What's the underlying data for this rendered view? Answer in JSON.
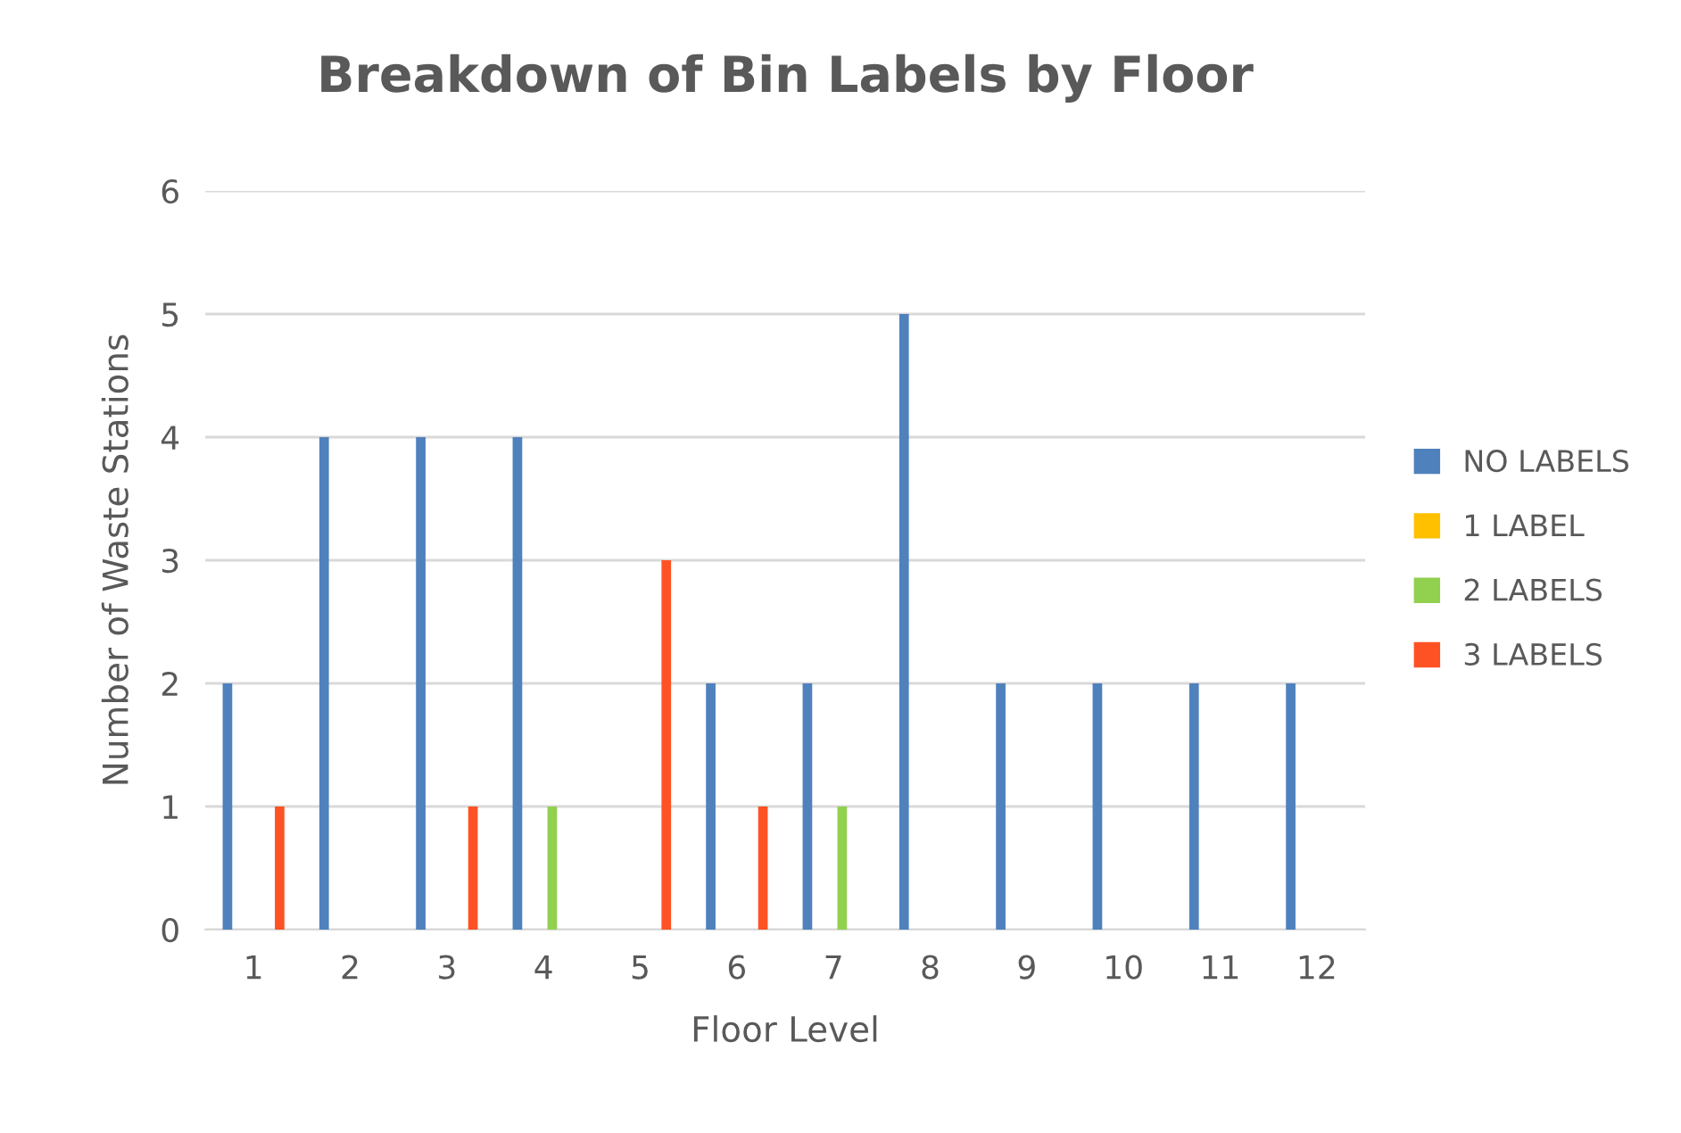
{
  "chart_data": {
    "type": "bar",
    "title": "Breakdown of Bin Labels by Floor",
    "xlabel": "Floor Level",
    "ylabel": "Number of Waste Stations",
    "categories": [
      "1",
      "2",
      "3",
      "4",
      "5",
      "6",
      "7",
      "8",
      "9",
      "10",
      "11",
      "12"
    ],
    "series": [
      {
        "name": "NO LABELS",
        "color": "#4f81bd",
        "values": [
          2,
          4,
          4,
          4,
          0,
          2,
          2,
          5,
          2,
          2,
          2,
          2
        ]
      },
      {
        "name": "1 LABEL",
        "color": "#ffc000",
        "values": [
          0,
          0,
          0,
          0,
          0,
          0,
          0,
          0,
          0,
          0,
          0,
          0
        ]
      },
      {
        "name": "2 LABELS",
        "color": "#92d050",
        "values": [
          0,
          0,
          0,
          1,
          0,
          0,
          1,
          0,
          0,
          0,
          0,
          0
        ]
      },
      {
        "name": "3 LABELS",
        "color": "#ff5224",
        "values": [
          1,
          0,
          1,
          0,
          3,
          1,
          0,
          0,
          0,
          0,
          0,
          0
        ]
      }
    ],
    "ylim": [
      0,
      6
    ],
    "yticks": [
      0,
      1,
      2,
      3,
      4,
      5,
      6
    ],
    "grid": "y",
    "legend": "right"
  }
}
